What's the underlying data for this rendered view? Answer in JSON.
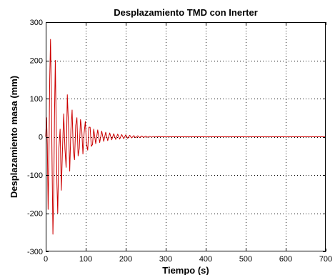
{
  "chart_data": {
    "type": "line",
    "title": "Desplazamiento TMD con Inerter",
    "xlabel": "Tiempo (s)",
    "ylabel": "Desplazamiento masa (mm)",
    "xlim": [
      0,
      700
    ],
    "ylim": [
      -300,
      300
    ],
    "xticks": [
      0,
      100,
      200,
      300,
      400,
      500,
      600,
      700
    ],
    "yticks": [
      -300,
      -200,
      -100,
      0,
      100,
      200,
      300
    ],
    "xtick_labels": [
      "0",
      "100",
      "200",
      "300",
      "400",
      "500",
      "600",
      "700"
    ],
    "ytick_labels": [
      "-300",
      "-200",
      "-100",
      "0",
      "100",
      "200",
      "300"
    ],
    "grid": true,
    "grid_style": "dotted",
    "line_color": "#cc0000",
    "series": [
      {
        "x": [
          0,
          2,
          4,
          6,
          8,
          10,
          12,
          14,
          16,
          18,
          20,
          22,
          24,
          26,
          28,
          30,
          33,
          36,
          39,
          42,
          45,
          48,
          51,
          54,
          57,
          60,
          63,
          66,
          69,
          72,
          75,
          78,
          81,
          84,
          87,
          90,
          93,
          96,
          99,
          102,
          105,
          108,
          111,
          114,
          117,
          120,
          125,
          130,
          135,
          140,
          145,
          150,
          155,
          160,
          165,
          170,
          175,
          180,
          185,
          190,
          195,
          200,
          205,
          210,
          215,
          220,
          225,
          230,
          235,
          240,
          245,
          250,
          255,
          260,
          265,
          270,
          275,
          280,
          300,
          350,
          400,
          450,
          500,
          550,
          600,
          650,
          700
        ],
        "y": [
          0,
          50,
          -20,
          -190,
          -60,
          150,
          255,
          120,
          -80,
          -255,
          -150,
          60,
          200,
          40,
          -120,
          -200,
          -30,
          20,
          -140,
          -30,
          60,
          -30,
          -80,
          110,
          30,
          -90,
          20,
          70,
          -40,
          -60,
          30,
          50,
          -50,
          -30,
          45,
          20,
          -45,
          10,
          40,
          -20,
          -35,
          25,
          25,
          -25,
          -20,
          20,
          -18,
          18,
          -15,
          15,
          -12,
          12,
          -10,
          10,
          -8,
          8,
          -7,
          7,
          -6,
          6,
          -5,
          5,
          -4,
          4,
          -3,
          3,
          -2.5,
          2.5,
          -2,
          2,
          -1.5,
          1.5,
          -1,
          1,
          -0.8,
          0.8,
          -0.5,
          0.5,
          0,
          0,
          0,
          0,
          0,
          0,
          0,
          0,
          0
        ]
      }
    ]
  }
}
